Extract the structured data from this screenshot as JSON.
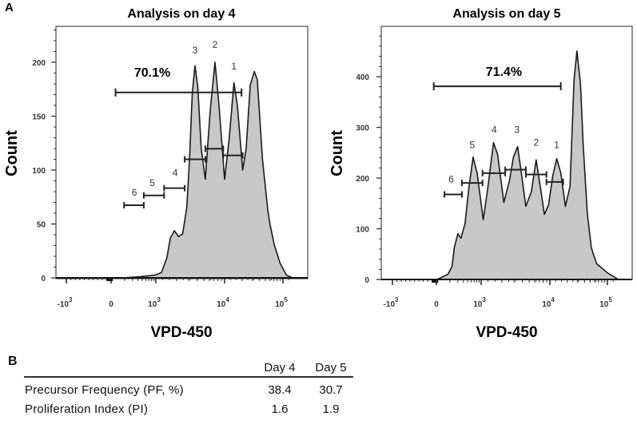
{
  "panel_a_label": "A",
  "panel_b_label": "B",
  "chart_data": [
    {
      "type": "area",
      "title": "Analysis on day 4",
      "xlabel": "VPD-450",
      "ylabel": "Count",
      "x_scale": "biexponential (x given in tick units: -1=-10^3, 0=0, 1=10^3, 2=10^4, 3=10^5)",
      "x_ticks": [
        {
          "base": "-10",
          "exp": "3"
        },
        {
          "base": "0",
          "exp": ""
        },
        {
          "base": "10",
          "exp": "3"
        },
        {
          "base": "10",
          "exp": "4"
        },
        {
          "base": "10",
          "exp": "5"
        }
      ],
      "y_ticks": [
        "0",
        "50",
        "100",
        "150",
        "200"
      ],
      "y_tick_values": [
        0,
        50,
        100,
        150,
        200
      ],
      "y_minor_step": 10,
      "ylim": [
        0,
        233
      ],
      "curve": [
        [
          0.25,
          0
        ],
        [
          0.67,
          1.2
        ],
        [
          0.97,
          2.5
        ],
        [
          1.08,
          4.9
        ],
        [
          1.16,
          18.5
        ],
        [
          1.21,
          37
        ],
        [
          1.27,
          43.7
        ],
        [
          1.33,
          38.3
        ],
        [
          1.39,
          40.7
        ],
        [
          1.45,
          65.4
        ],
        [
          1.49,
          109.6
        ],
        [
          1.53,
          171.6
        ],
        [
          1.57,
          196.8
        ],
        [
          1.61,
          176.5
        ],
        [
          1.66,
          119.8
        ],
        [
          1.72,
          91.4
        ],
        [
          1.79,
          154.3
        ],
        [
          1.86,
          200
        ],
        [
          1.92,
          159.3
        ],
        [
          2.0,
          91.4
        ],
        [
          2.08,
          129.6
        ],
        [
          2.16,
          181
        ],
        [
          2.22,
          159.3
        ],
        [
          2.31,
          100
        ],
        [
          2.37,
          119.8
        ],
        [
          2.44,
          179
        ],
        [
          2.51,
          191.4
        ],
        [
          2.56,
          184
        ],
        [
          2.65,
          110
        ],
        [
          2.74,
          63.2
        ],
        [
          2.78,
          49.4
        ],
        [
          2.85,
          30.9
        ],
        [
          2.95,
          13.6
        ],
        [
          3.06,
          2.5
        ],
        [
          3.17,
          0
        ]
      ],
      "total_gate": {
        "label": "70.1%",
        "x": [
          0.1,
          2.29
        ],
        "y": 172,
        "label_at": [
          0.92,
          191
        ]
      },
      "gates": [
        {
          "label": "1",
          "x": [
            1.98,
            2.31
          ],
          "y": 113.6,
          "label_at": [
            2.16,
            197
          ]
        },
        {
          "label": "2",
          "x": [
            1.72,
            1.98
          ],
          "y": 119.8,
          "label_at": [
            1.86,
            217
          ]
        },
        {
          "label": "3",
          "x": [
            1.42,
            1.72
          ],
          "y": 110,
          "label_at": [
            1.57,
            212
          ]
        },
        {
          "label": "4",
          "x": [
            1.12,
            1.42
          ],
          "y": 83.2,
          "label_at": [
            1.28,
            98
          ]
        },
        {
          "label": "5",
          "x": [
            0.73,
            1.12
          ],
          "y": 76.5,
          "label_at": [
            0.92,
            89
          ]
        },
        {
          "label": "6",
          "x": [
            0.29,
            0.73
          ],
          "y": 67.4,
          "label_at": [
            0.52,
            80
          ]
        }
      ]
    },
    {
      "type": "area",
      "title": "Analysis on day 5",
      "xlabel": "VPD-450",
      "ylabel": "Count",
      "x_scale": "biexponential (x given in tick units: -1=-10^3, 0=0, 1=10^3, 2=10^4, 3=10^5)",
      "x_ticks": [
        {
          "base": "-10",
          "exp": "3"
        },
        {
          "base": "0",
          "exp": ""
        },
        {
          "base": "10",
          "exp": "3"
        },
        {
          "base": "10",
          "exp": "4"
        },
        {
          "base": "10",
          "exp": "5"
        }
      ],
      "y_ticks": [
        "0",
        "100",
        "200",
        "300",
        "400"
      ],
      "y_tick_values": [
        0,
        100,
        200,
        300,
        400
      ],
      "y_minor_step": 20,
      "ylim": [
        0,
        498
      ],
      "curve": [
        [
          0.02,
          0
        ],
        [
          0.14,
          5.2
        ],
        [
          0.26,
          10.5
        ],
        [
          0.35,
          26.2
        ],
        [
          0.4,
          62.9
        ],
        [
          0.48,
          90.2
        ],
        [
          0.55,
          81.3
        ],
        [
          0.64,
          110.1
        ],
        [
          0.73,
          183.5
        ],
        [
          0.82,
          241.2
        ],
        [
          0.91,
          209.7
        ],
        [
          1.03,
          118
        ],
        [
          1.1,
          183.5
        ],
        [
          1.18,
          270
        ],
        [
          1.24,
          246.4
        ],
        [
          1.33,
          152
        ],
        [
          1.41,
          194
        ],
        [
          1.47,
          241.2
        ],
        [
          1.53,
          262
        ],
        [
          1.58,
          214.9
        ],
        [
          1.65,
          144.2
        ],
        [
          1.73,
          173
        ],
        [
          1.8,
          235.9
        ],
        [
          1.86,
          183.5
        ],
        [
          1.92,
          128.4
        ],
        [
          1.98,
          146.8
        ],
        [
          2.05,
          204.4
        ],
        [
          2.12,
          238.4
        ],
        [
          2.19,
          209.7
        ],
        [
          2.27,
          144.2
        ],
        [
          2.35,
          183.5
        ],
        [
          2.42,
          393
        ],
        [
          2.47,
          450.6
        ],
        [
          2.53,
          387.7
        ],
        [
          2.58,
          261.9
        ],
        [
          2.65,
          131
        ],
        [
          2.72,
          62.9
        ],
        [
          2.81,
          31.5
        ],
        [
          3.0,
          13.1
        ],
        [
          3.19,
          0
        ]
      ],
      "total_gate": {
        "label": "71.4%",
        "x": [
          -0.06,
          2.19
        ],
        "y": 381,
        "label_at": [
          1.33,
          411
        ]
      },
      "gates": [
        {
          "label": "1",
          "x": [
            1.95,
            2.23
          ],
          "y": 192.4,
          "label_at": [
            2.12,
            267
          ]
        },
        {
          "label": "2",
          "x": [
            1.65,
            1.95
          ],
          "y": 207,
          "label_at": [
            1.8,
            271.6
          ]
        },
        {
          "label": "3",
          "x": [
            1.35,
            1.65
          ],
          "y": 216.5,
          "label_at": [
            1.52,
            297
          ]
        },
        {
          "label": "4",
          "x": [
            1.02,
            1.35
          ],
          "y": 209.7,
          "label_at": [
            1.19,
            297
          ]
        },
        {
          "label": "5",
          "x": [
            0.57,
            1.02
          ],
          "y": 190.3,
          "label_at": [
            0.8,
            267
          ]
        },
        {
          "label": "6",
          "x": [
            0.18,
            0.57
          ],
          "y": 167.8,
          "label_at": [
            0.33,
            199
          ]
        }
      ]
    }
  ],
  "table": {
    "headers": [
      "Day 4",
      "Day 5"
    ],
    "rows": [
      {
        "label": "Precursor Frequency (PF, %)",
        "values": [
          "38.4",
          "30.7"
        ]
      },
      {
        "label": "Proliferation Index (PI)",
        "values": [
          "1.6",
          "1.9"
        ]
      }
    ]
  },
  "colors": {
    "fill": "#c8c8c8",
    "line": "#1a1a1a",
    "tick_text": "#333333"
  }
}
